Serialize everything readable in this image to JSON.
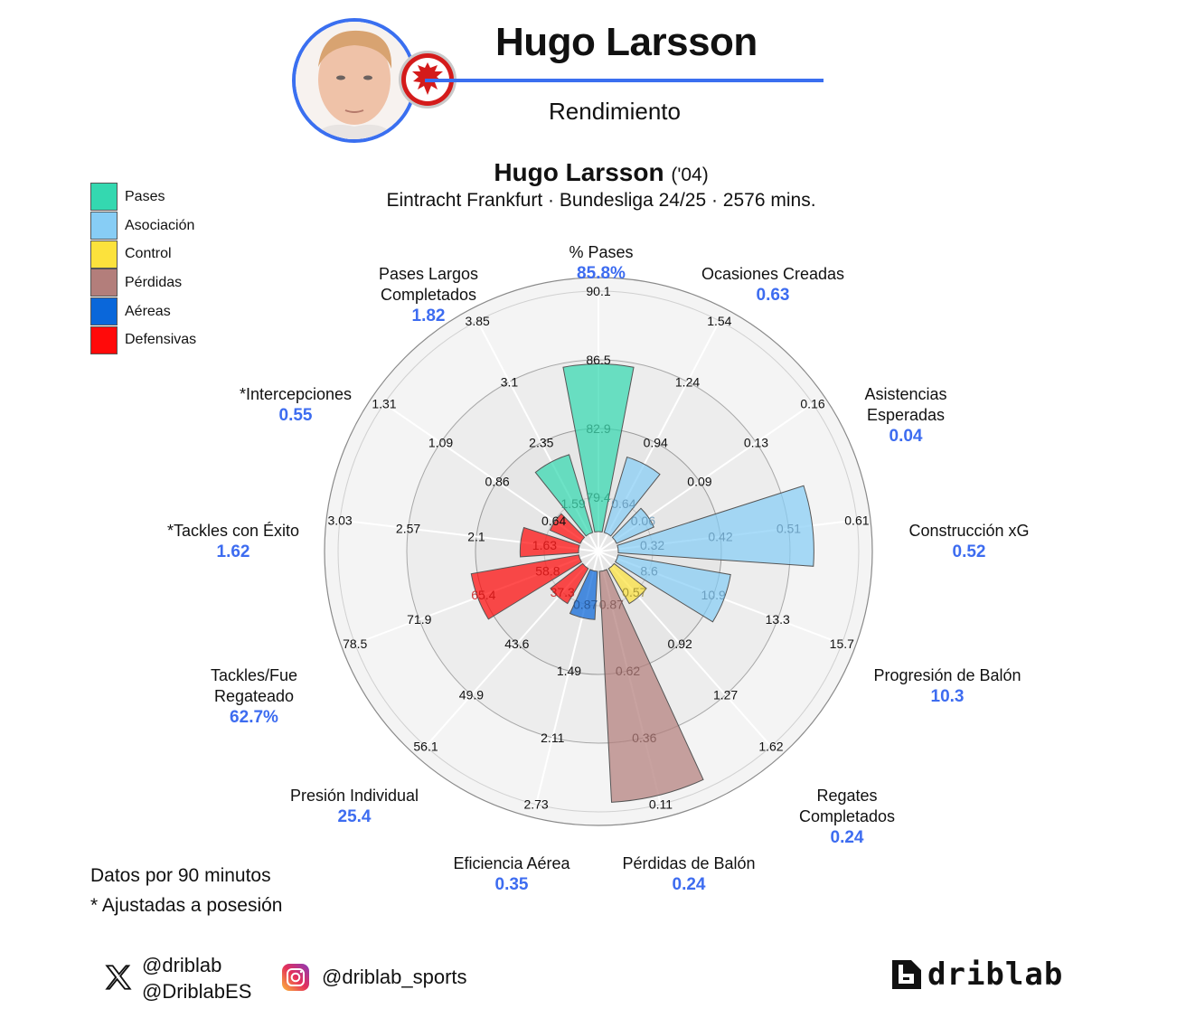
{
  "header": {
    "player_name": "Hugo Larsson",
    "subtitle": "Rendimiento",
    "accent_color": "#3a6ff0"
  },
  "chart_title": {
    "name": "Hugo Larsson",
    "year": "('04)",
    "subtitle": "Eintracht Frankfurt · Bundesliga 24/25 · 2576 mins."
  },
  "legend": [
    {
      "label": "Pases",
      "color": "#34d8b0"
    },
    {
      "label": "Asociación",
      "color": "#87cdf5"
    },
    {
      "label": "Control",
      "color": "#fce23c"
    },
    {
      "label": "Pérdidas",
      "color": "#b37e7b"
    },
    {
      "label": "Aéreas",
      "color": "#0a67da"
    },
    {
      "label": "Defensivas",
      "color": "#ff0a0a"
    }
  ],
  "notes": {
    "line1": "Datos por 90 minutos",
    "line2": "* Ajustadas a posesión"
  },
  "social": {
    "x_handle1": "@driblab",
    "x_handle2": "@DriblabES",
    "instagram": "@driblab_sports",
    "brand": "driblab"
  },
  "chart_data": {
    "type": "polar-bar",
    "title": "Hugo Larsson ('04)",
    "subtitle": "Eintracht Frankfurt · Bundesliga 24/25 · 2576 mins.",
    "rings": 4,
    "categories": [
      {
        "label": "% Pases",
        "value": "85.8%",
        "group": "Pases",
        "ticks": [
          "79.4",
          "82.9",
          "86.5",
          "90.1"
        ],
        "fill": 0.66
      },
      {
        "label": "Ocasiones Creadas",
        "value": "0.63",
        "group": "Asociación",
        "ticks": [
          "0.64",
          "0.94",
          "1.24",
          "1.54"
        ],
        "fill": 0.31
      },
      {
        "label": "Asistencias Esperadas",
        "value": "0.04",
        "group": "Asociación",
        "ticks": [
          "0.06",
          "0.09",
          "0.13",
          "0.16"
        ],
        "fill": 0.16
      },
      {
        "label": "Construcción xG",
        "value": "0.52",
        "group": "Asociación",
        "ticks": [
          "0.32",
          "0.42",
          "0.51",
          "0.61"
        ],
        "fill": 0.77
      },
      {
        "label": "Progresión de Balón",
        "value": "10.3",
        "group": "Asociación",
        "ticks": [
          "8.6",
          "10.9",
          "13.3",
          "15.7"
        ],
        "fill": 0.45
      },
      {
        "label": "Regates Completados",
        "value": "0.24",
        "group": "Control",
        "ticks": [
          "0.57",
          "0.92",
          "1.27",
          "1.62"
        ],
        "fill": 0.16
      },
      {
        "label": "Pérdidas de Balón",
        "value": "0.24",
        "group": "Pérdidas",
        "ticks": [
          "0.87",
          "0.62",
          "0.36",
          "0.11"
        ],
        "fill": 0.91
      },
      {
        "label": "Eficiencia Aérea",
        "value": "0.35",
        "group": "Aéreas",
        "ticks": [
          "0.87",
          "1.49",
          "2.11",
          "2.73"
        ],
        "fill": 0.19
      },
      {
        "label": "Presión Individual",
        "value": "25.4",
        "group": "Defensivas",
        "ticks": [
          "37.3",
          "43.6",
          "49.9",
          "56.1"
        ],
        "fill": 0.16
      },
      {
        "label": "Tackles/Fue Regateado",
        "value": "62.7%",
        "group": "Defensivas",
        "ticks": [
          "58.8",
          "65.4",
          "71.9",
          "78.5"
        ],
        "fill": 0.43
      },
      {
        "label": "*Tackles con Éxito",
        "value": "1.62",
        "group": "Defensivas",
        "ticks": [
          "1.63",
          "2.1",
          "2.57",
          "3.03"
        ],
        "fill": 0.23
      },
      {
        "label": "*Intercepciones",
        "value": "0.55",
        "group": "Defensivas",
        "ticks": [
          "0.64",
          "0.86",
          "1.09",
          "1.31"
        ],
        "fill": 0.13
      },
      {
        "label": "Pases Largos Completados",
        "value": "1.82",
        "group": "Pases",
        "ticks": [
          "1.59",
          "2.35",
          "3.1",
          "3.85"
        ],
        "fill": 0.32
      }
    ],
    "note": "Datos por 90 minutos; * Ajustadas a posesión"
  }
}
